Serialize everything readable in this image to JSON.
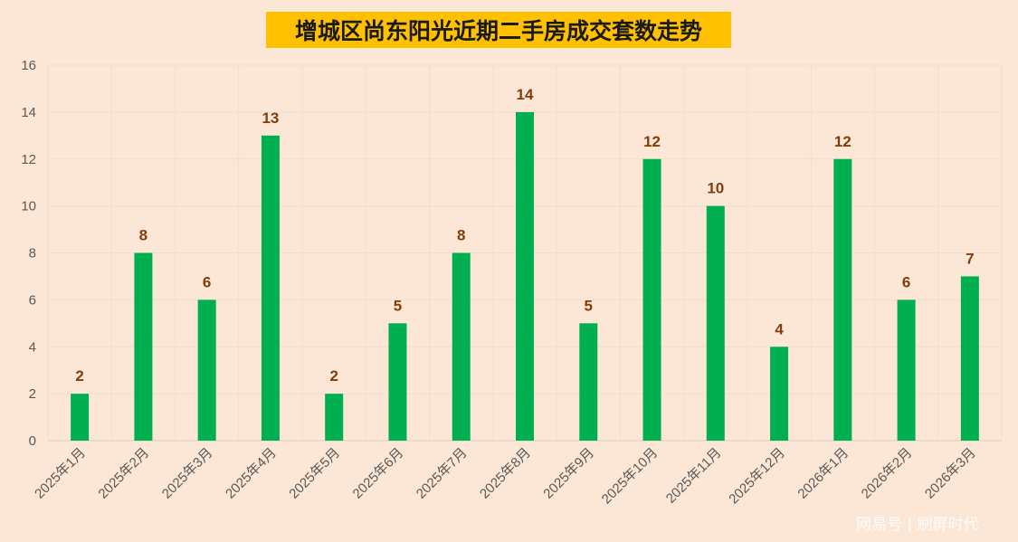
{
  "chart_data": {
    "type": "bar",
    "title": "增城区尚东阳光近期二手房成交套数走势",
    "categories": [
      "2025年1月",
      "2025年2月",
      "2025年3月",
      "2025年4月",
      "2025年5月",
      "2025年6月",
      "2025年7月",
      "2025年8月",
      "2025年9月",
      "2025年10月",
      "2025年11月",
      "2025年12月",
      "2026年1月",
      "2026年2月",
      "2026年3月"
    ],
    "values": [
      2,
      8,
      6,
      13,
      2,
      5,
      8,
      14,
      5,
      12,
      10,
      4,
      12,
      6,
      7
    ],
    "yticks": [
      0,
      2,
      4,
      6,
      8,
      10,
      12,
      14,
      16
    ],
    "ylim": [
      0,
      16
    ],
    "xlabel": "",
    "ylabel": "",
    "grid": true,
    "data_labels": true,
    "bar_color": "#00b050",
    "label_color": "#843c0c",
    "background_color": "#fce6d5",
    "title_background": "#ffc000"
  },
  "watermark": "网易号 | 刷屏时代"
}
